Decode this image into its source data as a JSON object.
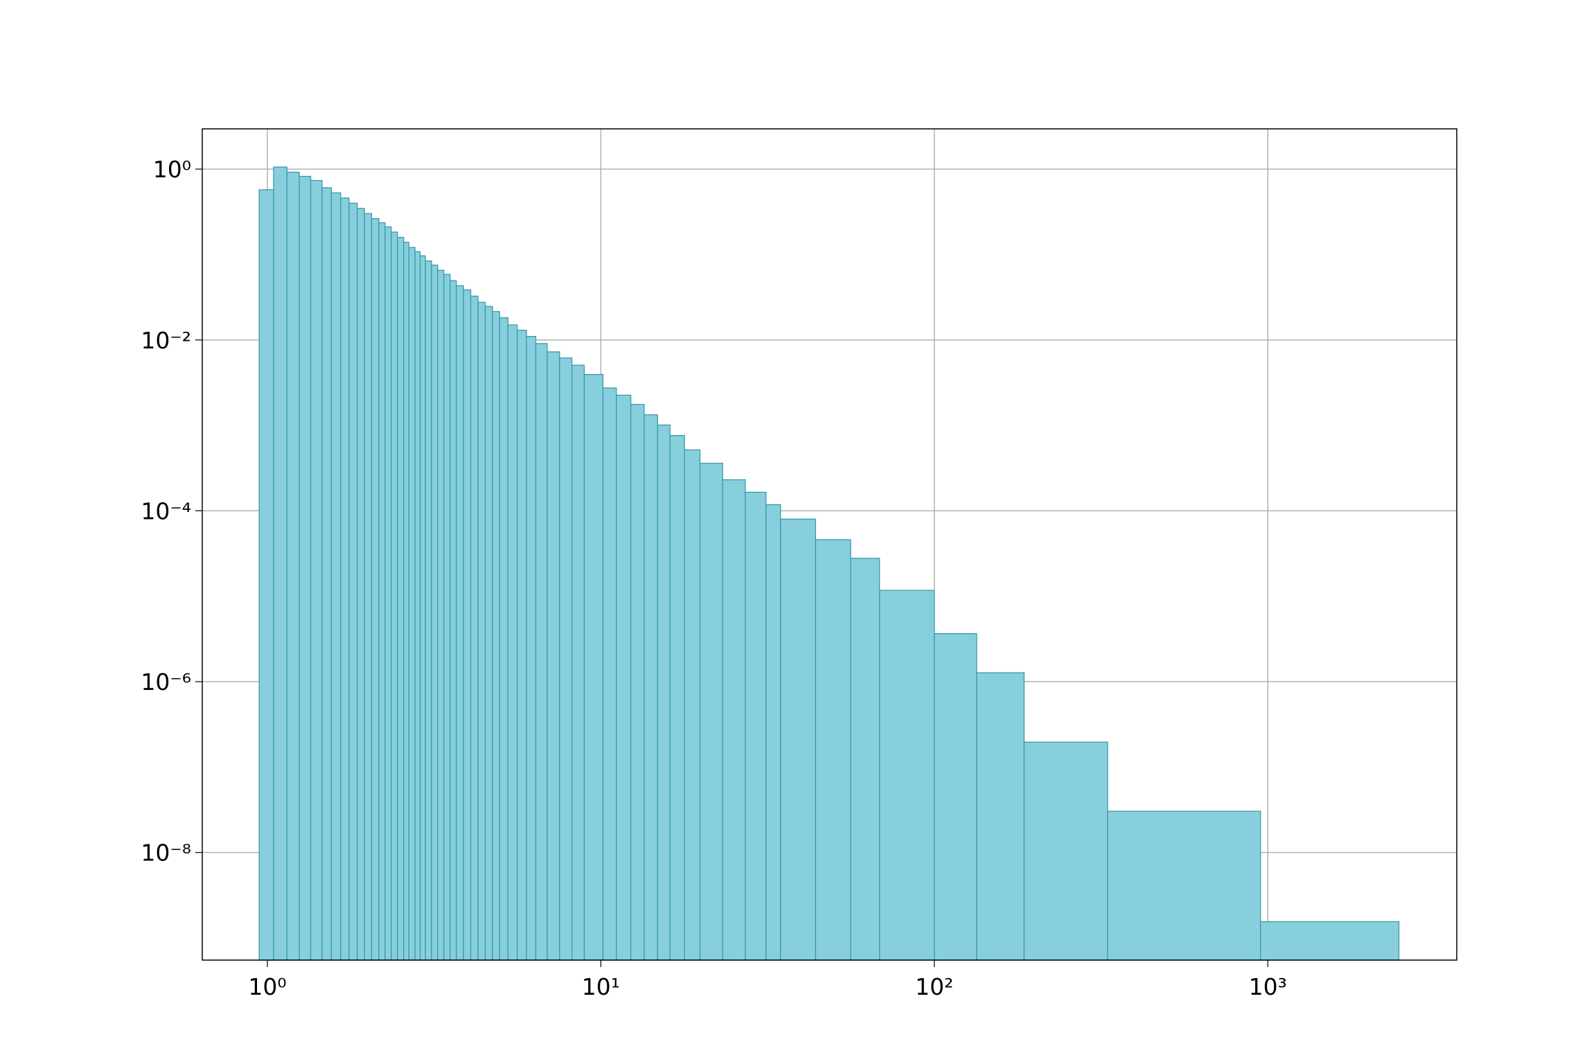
{
  "chart_data": {
    "type": "histogram",
    "bins": [
      0.945,
      1.044,
      1.145,
      1.247,
      1.349,
      1.459,
      1.556,
      1.659,
      1.757,
      1.86,
      1.955,
      2.054,
      2.16,
      2.254,
      2.352,
      2.455,
      2.563,
      2.656,
      2.772,
      2.872,
      2.977,
      3.107,
      3.242,
      3.383,
      3.532,
      3.687,
      3.873,
      4.073,
      4.281,
      4.501,
      4.731,
      4.973,
      5.266,
      5.612,
      5.984,
      6.382,
      6.904,
      7.52,
      8.19,
      8.92,
      10.15,
      11.13,
      12.3,
      13.49,
      14.8,
      16.12,
      17.82,
      19.83,
      23.19,
      27.12,
      31.28,
      34.58,
      44.05,
      56.13,
      68.5,
      100,
      134,
      185.9,
      331,
      951,
      2473
    ],
    "values": [
      0.573,
      1.057,
      0.92,
      0.823,
      0.736,
      0.606,
      0.527,
      0.459,
      0.399,
      0.347,
      0.302,
      0.263,
      0.235,
      0.211,
      0.183,
      0.159,
      0.139,
      0.121,
      0.108,
      0.0966,
      0.0841,
      0.0752,
      0.0654,
      0.0585,
      0.0495,
      0.0431,
      0.0386,
      0.0326,
      0.0276,
      0.0247,
      0.0215,
      0.0182,
      0.015,
      0.013,
      0.011,
      0.00908,
      0.00726,
      0.00615,
      0.00506,
      0.00394,
      0.00274,
      0.00226,
      0.00176,
      0.00133,
      0.00101,
      0.000762,
      0.000516,
      0.00036,
      0.000231,
      0.000165,
      0.000118,
      8e-05,
      4.59e-05,
      2.78e-05,
      1.17e-05,
      3.65e-06,
      1.27e-06,
      1.96e-07,
      3.04e-08,
      1.55e-09
    ],
    "color": "#87cfdd",
    "edgecolor": "#3a9aa8",
    "xscale": "log",
    "yscale": "log",
    "grid": true,
    "xlim": [
      0.638,
      3687
    ],
    "ylim": [
      5.5e-10,
      2.96
    ],
    "xticks": [
      {
        "value": 1,
        "label": "10⁰"
      },
      {
        "value": 10,
        "label": "10¹"
      },
      {
        "value": 100,
        "label": "10²"
      },
      {
        "value": 1000,
        "label": "10³"
      }
    ],
    "yticks": [
      {
        "value": 1,
        "label": "10⁰"
      },
      {
        "value": 0.01,
        "label": "10⁻²"
      },
      {
        "value": 0.0001,
        "label": "10⁻⁴"
      },
      {
        "value": 1e-06,
        "label": "10⁻⁶"
      },
      {
        "value": 1e-08,
        "label": "10⁻⁸"
      }
    ]
  }
}
